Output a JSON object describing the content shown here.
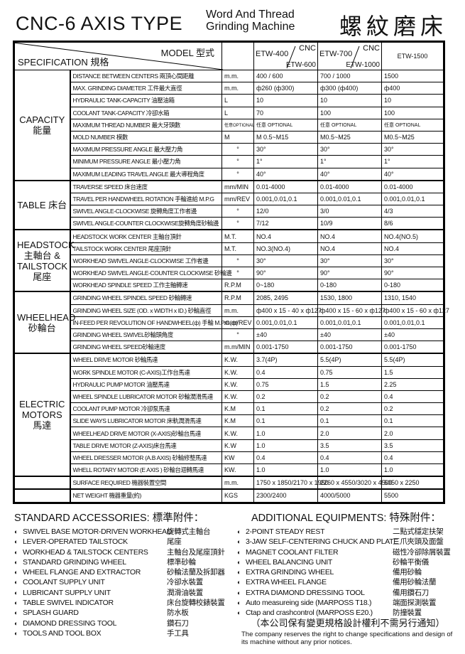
{
  "header": {
    "title": "CNC-6 AXIS TYPE",
    "subtitle_line1": "Word And Thread",
    "subtitle_line2": "Grinding Machine",
    "title_zh": "螺紋磨床"
  },
  "table": {
    "model_label": "MODEL 型式",
    "spec_label": "SPECIFICATION 規格",
    "models": [
      {
        "a": "ETW-400",
        "b": "CNC",
        "c": "ETW-600"
      },
      {
        "a": "ETW-700",
        "b": "CNC",
        "c": "ETW-1000"
      },
      {
        "a": "ETW-1500"
      }
    ],
    "groups": [
      {
        "label": "CAPACITY\n能量",
        "rows": [
          [
            "DISTANCE BETWEEN CENTERS 兩頂心間距離",
            "m.m.",
            "400 / 600",
            "700 / 1000",
            "1500"
          ],
          [
            "MAX. GRINDING DIAMETER 工件最大直徑",
            "m.m.",
            "ф260 (ф300)",
            "ф300 (ф400)",
            "ф400"
          ],
          [
            "HYDRAULIC TANK-CAPACITY 油壓油箱",
            "L",
            "10",
            "10",
            "10"
          ],
          [
            "COOLANT TANK-CAPACITY 冷卻水箱",
            "L",
            "70",
            "100",
            "100"
          ],
          [
            "MAXIMUM THREAD NUMBER 最大牙頭數",
            "任意OPTIONAL",
            "任意 OPTIONAL",
            "任意 OPTIONAL",
            "任意 OPTIONAL"
          ],
          [
            "MOLD NUMBER 模數",
            "M",
            "M 0.5~M15",
            "M0.5~M25",
            "M0.5~M25"
          ],
          [
            "MAXIMUM PRESSURE ANGLE 最大壓力角",
            "°",
            "30°",
            "30°",
            "30°"
          ],
          [
            "MINIMUM PRESSURE ANGLE 最小壓力角",
            "°",
            "1°",
            "1°",
            "1°"
          ],
          [
            "MAXIMUM LEADING TRAVEL ANGLE 最大導程角度",
            "°",
            "40°",
            "40°",
            "40°"
          ]
        ]
      },
      {
        "label": "TABLE\n床台",
        "rows": [
          [
            "TRAVERSE SPEED 床台速度",
            "mm/MIN",
            "0.01-4000",
            "0.01-4000",
            "0.01-4000"
          ],
          [
            "TRAVEL PER HANDWHEEL ROTATION 手輪進給 M.P.G",
            "mm/REV",
            "0.001,0.01,0.1",
            "0.001,0.01,0.1",
            "0.001,0.01,0.1"
          ],
          [
            "SWIVEL ANGLE-CLOCKWISE 旋轉角度工作者邊",
            "°",
            "12/0",
            "3/0",
            "4/3"
          ],
          [
            "SWIVEL ANGLE-COUNTER CLOCKWISE旋轉角度砂輪邊",
            "°",
            "7/12",
            "10/9",
            "8/6"
          ]
        ]
      },
      {
        "label": "HEADSTOCK\n主軸台\n&\nTAILSTOCK\n尾座",
        "rows": [
          [
            "HEADSTOCK WORK CENTER 主軸台頂針",
            "M.T.",
            "NO.4",
            "NO.4",
            "NO.4(NO.5)"
          ],
          [
            "TAILSTOCK WORK CENTER 尾座頂針",
            "M.T.",
            "NO.3(NO.4)",
            "NO.4",
            "NO.4"
          ],
          [
            "WORKHEAD SWIVEL ANGLE-CLOCKWISE 工作者邊",
            "°",
            "30°",
            "30°",
            "30°"
          ],
          [
            "WORKHEAD SWIVEL ANGLE-COUNTER CLOCKWISE 砂輪邊",
            "°",
            "90°",
            "90°",
            "90°"
          ],
          [
            "WORKHEAD SPINDLE SPEED 工作主軸轉速",
            "R.P.M",
            "0~180",
            "0-180",
            "0-180"
          ]
        ]
      },
      {
        "label": "WHEELHEAD\n砂輪台",
        "rows": [
          [
            "GRINDING WHEEL SPINDEL SPEED 砂輪轉速",
            "R.P.M",
            "2085, 2495",
            "1530, 1800",
            "1310, 1540"
          ],
          [
            "GRINDING WHEEL SIZE (OD. x WIDTH x ID.) 砂輪直徑",
            "m.m.",
            "ф400 x 15 - 40 x ф127",
            "ф400 x 15 - 60 x ф127",
            "ф400 x 15 - 60 x ф127"
          ],
          [
            "IN-FEED PER REVOLUTION OF HANDWHEEL(ф) 手輪 M.P.G(ф)",
            "m.m/REV",
            "0.001,0.01,0.1",
            "0.001,0.01,0.1",
            "0.001,0.01,0.1"
          ],
          [
            "GRINDING WHEEL SWIVEL砂輪頭角度",
            "°",
            "±40",
            "±40",
            "±40"
          ],
          [
            "GRINDING WHEEL SPEED砂輪速度",
            "m.m/MIN",
            "0.001-1750",
            "0.001-1750",
            "0.001-1750"
          ]
        ]
      },
      {
        "label": "ELECTRIC\nMOTORS\n馬達",
        "rows": [
          [
            "WHEEL DRIVE MOTOR 砂輪馬達",
            "K.W.",
            "3.7(4P)",
            "5.5(4P)",
            "5.5(4P)"
          ],
          [
            "WORK SPINDLE MOTOR (C-AXIS)工作台馬達",
            "K.W.",
            "0.4",
            "0.75",
            "1.5"
          ],
          [
            "HYDRAULIC PUMP MOTOR 油壓馬達",
            "K.W.",
            "0.75",
            "1.5",
            "2.25"
          ],
          [
            "WHEEL SPINDLE LUBRICATOR MOTOR 砂輪潤滑馬達",
            "K.W.",
            "0.2",
            "0.2",
            "0.4"
          ],
          [
            "COOLANT PUMP MOTOR 冷卻泵馬達",
            "K.M",
            "0.1",
            "0.2",
            "0.2"
          ],
          [
            "SLIDE WAYS LUBRICATOR MOTOR 床軌潤滑馬達",
            "K.M",
            "0.1",
            "0.1",
            "0.1"
          ],
          [
            "WHEELHEAD DRIVE MOTOR (X-AXIS)砂輪台馬達",
            "K.W.",
            "1.0",
            "2.0",
            "2.0"
          ],
          [
            "TABLE DRIVE MOTOR (Z-AXIS)床台馬達",
            "K.W",
            "1.0",
            "3.5",
            "3.5"
          ],
          [
            "WHEEL DRESSER MOTOR (A.B AXIS) 砂輪修整馬達",
            "KW",
            "0.4",
            "0.4",
            "0.4"
          ],
          [
            "WHELL ROTARY MOTOR (E AXIS ) 砂輪台迴轉馬達",
            "KW.",
            "1.0",
            "1.0",
            "1.0"
          ]
        ]
      },
      {
        "label": "",
        "rows": [
          [
            "SURFACE REQUIRED 機器裝置空間",
            "m.m.",
            "1750 x 1850/2170 x 1950",
            "2260 x 4550/3020 x 4500",
            "5050 x 2250"
          ]
        ]
      },
      {
        "label": "",
        "rows": [
          [
            "NET WEIGHT 機器重量(約)",
            "KGS",
            "2300/2400",
            "4000/5000",
            "5500"
          ]
        ]
      }
    ]
  },
  "standard_accessories": {
    "title": "STANDARD ACCESSORIES:  標準附件：",
    "items": [
      {
        "en": "SWIVEL BASE MOTOR-DRIVEN WORKHEAD",
        "zh": "旋轉式主軸台"
      },
      {
        "en": "LEVER-OPERATED TAILSTOCK",
        "zh": "尾座"
      },
      {
        "en": "WORKHEAD & TAILSTOCK CENTERS",
        "zh": "主軸台及尾座頂針"
      },
      {
        "en": "STANDARD GRINDING WHEEL",
        "zh": "標準砂輪"
      },
      {
        "en": "WHEEL FLANGE AND EXTRACTOR",
        "zh": "砂輪法蘭及拆卸器"
      },
      {
        "en": "COOLANT SUPPLY UNIT",
        "zh": "冷卻水裝置"
      },
      {
        "en": "LUBRICANT SUPPLY UNIT",
        "zh": "潤滑油裝置"
      },
      {
        "en": "TABLE SWIVEL INDICATOR",
        "zh": "床台旋轉校錶裝置"
      },
      {
        "en": "SPLASH GUARD",
        "zh": "防水板"
      },
      {
        "en": "DIAMOND DRESSING TOOL",
        "zh": "鑽石刀"
      },
      {
        "en": "TOOLS AND TOOL BOX",
        "zh": "手工具"
      }
    ]
  },
  "additional_equipments": {
    "title": "ADDITIONAL EQUIPMENTS:  特殊附件：",
    "items": [
      {
        "en": "2-POINT STEADY REST",
        "zh": "二點式穩定扶架"
      },
      {
        "en": "3-JAW SELF-CENTERING CHUCK AND PLATE",
        "zh": "三爪夾頭及面盤"
      },
      {
        "en": "MAGNET COOLANT FILTER",
        "zh": "磁性冷卻除屑裝置"
      },
      {
        "en": "WHEEL BALANCING UNIT",
        "zh": "砂輪平衡儀"
      },
      {
        "en": "EXTRA GRINDING WHEEL",
        "zh": "備用砂輪"
      },
      {
        "en": "EXTRA WHEEL FLANGE",
        "zh": "備用砂輪法蘭"
      },
      {
        "en": "EXTRA DIAMOND DRESSING TOOL",
        "zh": "備用鑽石刀"
      },
      {
        "en": "Auto measureing side (MARPOSS T18.)",
        "zh": "端面探測裝置"
      },
      {
        "en": "Ctap and crashcontrol (MARPOSS E20.)",
        "zh": "防撞裝置"
      }
    ]
  },
  "notice": {
    "zh": "（本公司保有變更規格設計權利不需另行通知）",
    "en": "The company reserves the right to change specifications and design of its machine without any prior notices."
  },
  "bullet_icon": "half-circle-bullet"
}
